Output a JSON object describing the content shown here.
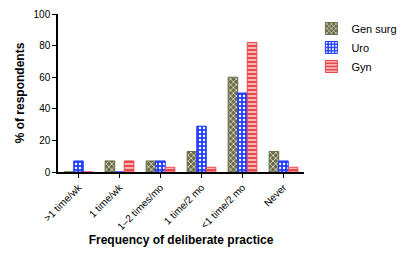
{
  "chart_data": {
    "type": "bar",
    "x_label": "Frequency of deliberate practice",
    "y_label": "% of respondents",
    "categories": [
      ">1 time/wk",
      "1 time/wk",
      "1–2 times/mo",
      "1 time/2 mo",
      "<1 time/2 mo",
      "Never"
    ],
    "series": [
      {
        "name": "Gen surg",
        "color": "#6b6b45",
        "values": [
          0,
          7,
          7,
          13,
          60,
          13
        ]
      },
      {
        "name": "Uro",
        "color": "#1f3cff",
        "values": [
          7,
          0,
          7,
          29,
          50,
          7
        ]
      },
      {
        "name": "Gyn",
        "color": "#e8474c",
        "values": [
          0,
          7,
          3,
          3,
          82,
          3
        ]
      }
    ],
    "ylim": [
      0,
      100
    ],
    "yticks": [
      0,
      20,
      40,
      60,
      80,
      100
    ],
    "grid": false,
    "legend": "upper right"
  }
}
